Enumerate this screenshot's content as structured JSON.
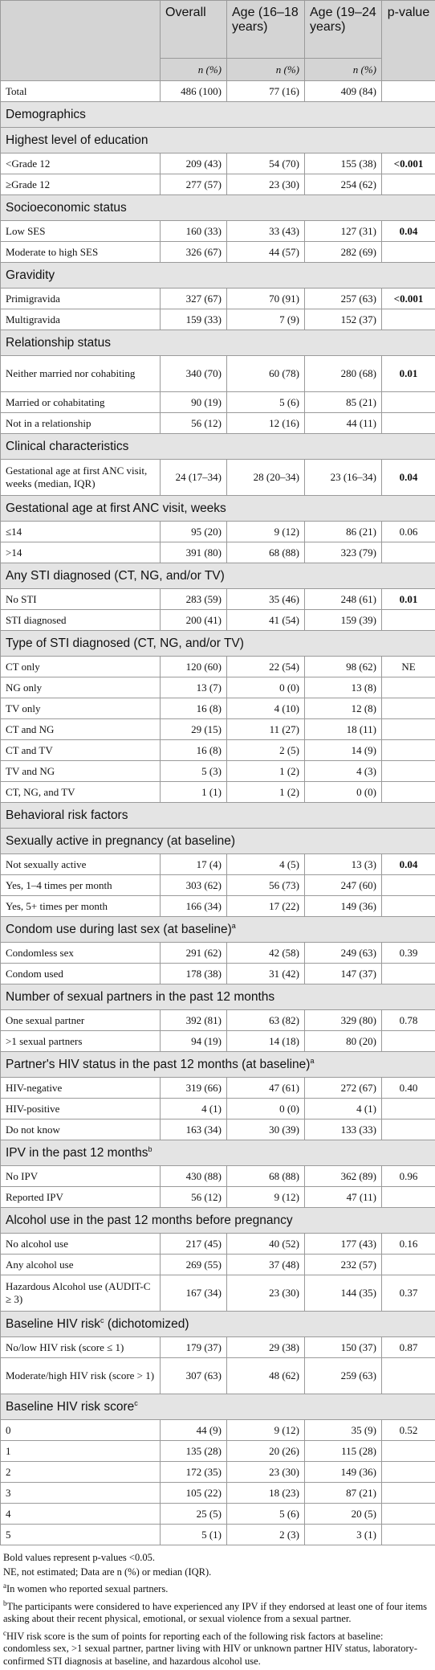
{
  "header": {
    "columns": [
      "",
      "Overall",
      "Age (16–18 years)",
      "Age (19–24 years)",
      "p-value"
    ],
    "subheader": [
      "n (%)",
      "n (%)",
      "n (%)"
    ]
  },
  "table": {
    "rows": [
      {
        "cells": [
          "Total",
          "486 (100)",
          "77 (16)",
          "409 (84)"
        ]
      },
      {
        "section": "Demographics"
      },
      {
        "section": "Highest level of education"
      },
      {
        "cells": [
          "<Grade 12",
          "209 (43)",
          "54 (70)",
          "155 (38)",
          "<0.001"
        ],
        "bold": true
      },
      {
        "cells": [
          "≥Grade 12",
          "277 (57)",
          "23 (30)",
          "254 (62)"
        ]
      },
      {
        "section": "Socioeconomic status"
      },
      {
        "cells": [
          "Low SES",
          "160 (33)",
          "33 (43)",
          "127 (31)",
          "0.04"
        ],
        "bold": true
      },
      {
        "cells": [
          "Moderate to high SES",
          "326 (67)",
          "44 (57)",
          "282 (69)"
        ]
      },
      {
        "section": "Gravidity"
      },
      {
        "cells": [
          "Primigravida",
          "327 (67)",
          "70 (91)",
          "257 (63)",
          "<0.001"
        ],
        "bold": true
      },
      {
        "cells": [
          "Multigravida",
          "159 (33)",
          "7 (9)",
          "152 (37)"
        ]
      },
      {
        "section": "Relationship status"
      },
      {
        "cells": [
          "Neither married nor cohabiting",
          "340 (70)",
          "60 (78)",
          "280 (68)",
          "0.01"
        ],
        "bold": true
      },
      {
        "cells": [
          "Married or cohabitating",
          "90 (19)",
          "5 (6)",
          "85 (21)"
        ]
      },
      {
        "cells": [
          "Not in a relationship",
          "56 (12)",
          "12 (16)",
          "44 (11)"
        ]
      },
      {
        "section": "Clinical characteristics"
      },
      {
        "cells": [
          "Gestational age at first ANC visit, weeks (median, IQR)",
          "24 (17–34)",
          "28 (20–34)",
          "23 (16–34)",
          "0.04"
        ],
        "bold": true
      },
      {
        "section": "Gestational age at first ANC visit, weeks"
      },
      {
        "cells": [
          "≤14",
          "95 (20)",
          "9 (12)",
          "86 (21)",
          "0.06"
        ]
      },
      {
        "cells": [
          ">14",
          "391 (80)",
          "68 (88)",
          "323 (79)"
        ]
      },
      {
        "section": "Any STI diagnosed (CT, NG, and/or TV)"
      },
      {
        "cells": [
          "No STI",
          "283 (59)",
          "35 (46)",
          "248 (61)",
          "0.01"
        ],
        "bold": true
      },
      {
        "cells": [
          "STI diagnosed",
          "200 (41)",
          "41 (54)",
          "159 (39)"
        ]
      },
      {
        "section": "Type of STI diagnosed (CT, NG, and/or TV)"
      },
      {
        "cells": [
          "CT only",
          "120 (60)",
          "22 (54)",
          "98 (62)",
          "NE"
        ]
      },
      {
        "cells": [
          "NG only",
          "13 (7)",
          "0 (0)",
          "13 (8)"
        ]
      },
      {
        "cells": [
          "TV only",
          "16 (8)",
          "4 (10)",
          "12 (8)"
        ]
      },
      {
        "cells": [
          "CT and NG",
          "29 (15)",
          "11 (27)",
          "18 (11)"
        ]
      },
      {
        "cells": [
          "CT and TV",
          "16 (8)",
          "2 (5)",
          "14 (9)"
        ]
      },
      {
        "cells": [
          "TV and NG",
          "5 (3)",
          "1 (2)",
          "4 (3)"
        ]
      },
      {
        "cells": [
          "CT, NG, and TV",
          "1 (1)",
          "1 (2)",
          "0 (0)"
        ]
      },
      {
        "section": "Behavioral risk factors"
      },
      {
        "section": "Sexually active in pregnancy (at baseline)"
      },
      {
        "cells": [
          "Not sexually active",
          "17 (4)",
          "4 (5)",
          "13 (3)",
          "0.04"
        ],
        "bold": true
      },
      {
        "cells": [
          "Yes, 1–4 times per month",
          "303 (62)",
          "56 (73)",
          "247 (60)"
        ]
      },
      {
        "cells": [
          "Yes, 5+ times per month",
          "166 (34)",
          "17 (22)",
          "149 (36)"
        ]
      },
      {
        "section": "Condom use during last sex (at baseline)",
        "sup": "a"
      },
      {
        "cells": [
          "Condomless sex",
          "291 (62)",
          "42 (58)",
          "249 (63)",
          "0.39"
        ]
      },
      {
        "cells": [
          "Condom used",
          "178 (38)",
          "31 (42)",
          "147 (37)"
        ]
      },
      {
        "section": "Number of sexual partners in the past 12 months"
      },
      {
        "cells": [
          "One sexual partner",
          "392 (81)",
          "63 (82)",
          "329 (80)",
          "0.78"
        ]
      },
      {
        "cells": [
          ">1 sexual partners",
          "94 (19)",
          "14 (18)",
          "80 (20)"
        ]
      },
      {
        "section": "Partner's HIV status in the past 12 months (at baseline)",
        "sup": "a"
      },
      {
        "cells": [
          "HIV-negative",
          "319 (66)",
          "47 (61)",
          "272 (67)",
          "0.40"
        ]
      },
      {
        "cells": [
          "HIV-positive",
          "4 (1)",
          "0 (0)",
          "4 (1)"
        ]
      },
      {
        "cells": [
          "Do not know",
          "163 (34)",
          "30 (39)",
          "133 (33)"
        ]
      },
      {
        "section": "IPV in the past 12 months",
        "sup": "b"
      },
      {
        "cells": [
          "No IPV",
          "430 (88)",
          "68 (88)",
          "362 (89)",
          "0.96"
        ]
      },
      {
        "cells": [
          "Reported IPV",
          "56 (12)",
          "9 (12)",
          "47 (11)"
        ]
      },
      {
        "section": "Alcohol use in the past 12 months before pregnancy"
      },
      {
        "cells": [
          "No alcohol use",
          "217 (45)",
          "40 (52)",
          "177 (43)",
          "0.16"
        ]
      },
      {
        "cells": [
          "Any alcohol use",
          "269 (55)",
          "37 (48)",
          "232 (57)"
        ]
      },
      {
        "cells": [
          "Hazardous Alcohol use (AUDIT-C ≥ 3)",
          "167 (34)",
          "23 (30)",
          "144 (35)",
          "0.37"
        ]
      },
      {
        "section": "Baseline HIV risk",
        "sup": "c",
        "after": "(dichotomized)"
      },
      {
        "cells": [
          "No/low HIV risk (score ≤ 1)",
          "179 (37)",
          "29 (38)",
          "150 (37)",
          "0.87"
        ]
      },
      {
        "cells": [
          "Moderate/high HIV risk (score > 1)",
          "307 (63)",
          "48 (62)",
          "259 (63)"
        ]
      },
      {
        "section": "Baseline HIV risk score",
        "sup": "c"
      },
      {
        "cells": [
          "0",
          "44 (9)",
          "9 (12)",
          "35 (9)",
          "0.52"
        ]
      },
      {
        "cells": [
          "1",
          "135 (28)",
          "20 (26)",
          "115 (28)"
        ]
      },
      {
        "cells": [
          "2",
          "172 (35)",
          "23 (30)",
          "149 (36)"
        ]
      },
      {
        "cells": [
          "3",
          "105 (22)",
          "18 (23)",
          "87 (21)"
        ]
      },
      {
        "cells": [
          "4",
          "25 (5)",
          "5 (6)",
          "20 (5)"
        ]
      },
      {
        "cells": [
          "5",
          "5 (1)",
          "2 (3)",
          "3 (1)"
        ]
      }
    ]
  },
  "footnotes": [
    {
      "text": "Bold values represent p-values <0.05."
    },
    {
      "text": "NE, not estimated; Data are n (%) or median (IQR)."
    },
    {
      "sup": "a",
      "text": "In women who reported sexual partners."
    },
    {
      "sup": "b",
      "text": "The participants were considered to have experienced any IPV if they endorsed at least one of four items asking about their recent physical, emotional, or sexual violence from a sexual partner."
    },
    {
      "sup": "c",
      "text": "HIV risk score is the sum of points for reporting each of the following risk factors at baseline: condomless sex, >1 sexual partner, partner living with HIV or unknown partner HIV status, laboratory-confirmed STI diagnosis at baseline, and hazardous alcohol use."
    }
  ]
}
